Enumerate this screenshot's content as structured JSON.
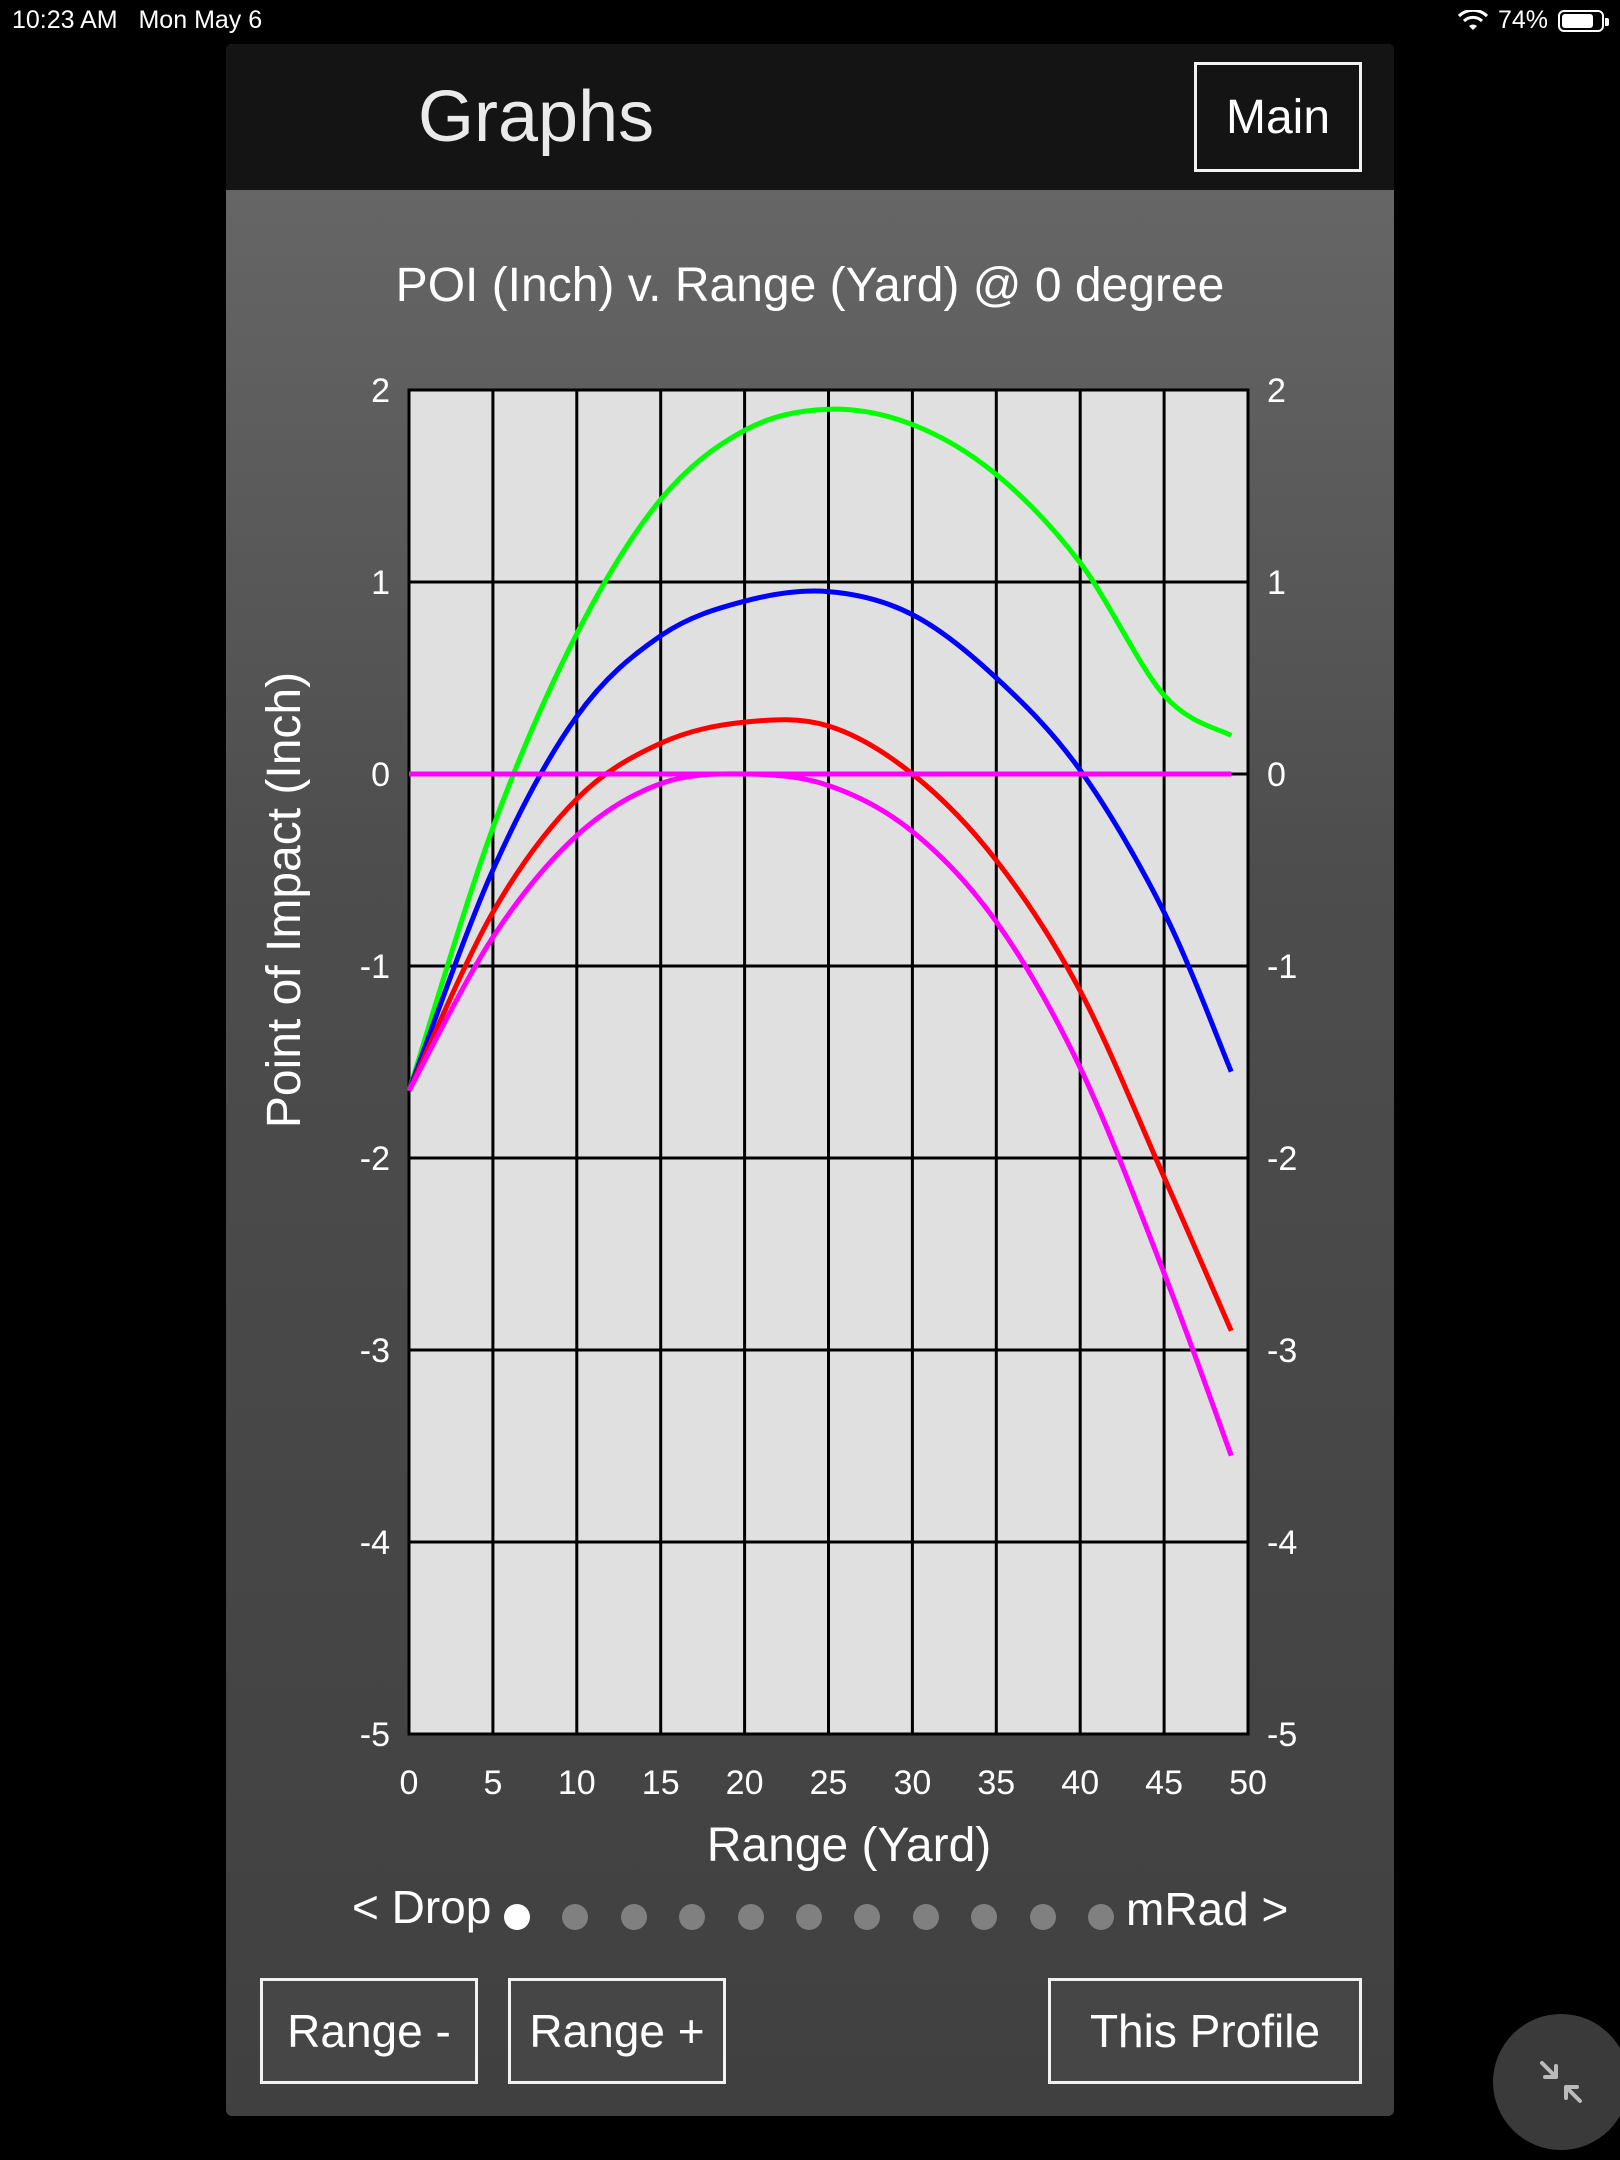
{
  "status_bar": {
    "time": "10:23 AM",
    "date": "Mon May 6",
    "battery": "74%",
    "battery_level": 0.74
  },
  "header": {
    "title": "Graphs",
    "main_button": "Main"
  },
  "chart_data": {
    "type": "line",
    "title": "POI (Inch) v. Range (Yard) @ 0 degree",
    "xlabel": "Range (Yard)",
    "ylabel": "Point of Impact (Inch)",
    "xlim": [
      0,
      50
    ],
    "ylim": [
      -5,
      2
    ],
    "x_ticks": [
      "0",
      "5",
      "10",
      "15",
      "20",
      "25",
      "30",
      "35",
      "40",
      "45",
      "50"
    ],
    "y_ticks_left": [
      "2",
      "1",
      "0",
      "-1",
      "-2",
      "-3",
      "-4",
      "-5"
    ],
    "y_ticks_right": [
      "2",
      "1",
      "0",
      "-1",
      "-2",
      "-3",
      "-4",
      "-5"
    ],
    "grid": true,
    "x": [
      0,
      5,
      10,
      15,
      20,
      25,
      30,
      35,
      40,
      45,
      49
    ],
    "series": [
      {
        "color": "#00ff00",
        "values": [
          -1.65,
          -0.28,
          0.73,
          1.43,
          1.79,
          1.9,
          1.82,
          1.56,
          1.1,
          0.41,
          0.2
        ]
      },
      {
        "color": "#0000ff",
        "values": [
          -1.65,
          -0.5,
          0.3,
          0.72,
          0.9,
          0.95,
          0.83,
          0.5,
          0.02,
          -0.72,
          -1.55
        ]
      },
      {
        "color": "#ff0000",
        "values": [
          -1.65,
          -0.72,
          -0.13,
          0.16,
          0.27,
          0.25,
          0.0,
          -0.45,
          -1.13,
          -2.1,
          -2.9
        ]
      },
      {
        "color": "#ff00ff",
        "values": [
          -1.65,
          -0.85,
          -0.32,
          -0.05,
          0.0,
          -0.06,
          -0.3,
          -0.77,
          -1.53,
          -2.6,
          -3.55
        ]
      },
      {
        "color": "#ff00ff",
        "values": [
          0,
          0,
          0,
          0,
          0,
          0,
          0,
          0,
          0,
          0,
          0
        ]
      }
    ]
  },
  "pager": {
    "prev_label": "< Drop",
    "next_label": "mRad >",
    "pages": 11,
    "active_index": 0
  },
  "buttons": {
    "range_minus": "Range -",
    "range_plus": "Range +",
    "this_profile": "This Profile"
  },
  "icons": {
    "fab": "collapse-arrows-icon",
    "wifi": "wifi-icon",
    "battery": "battery-icon"
  }
}
